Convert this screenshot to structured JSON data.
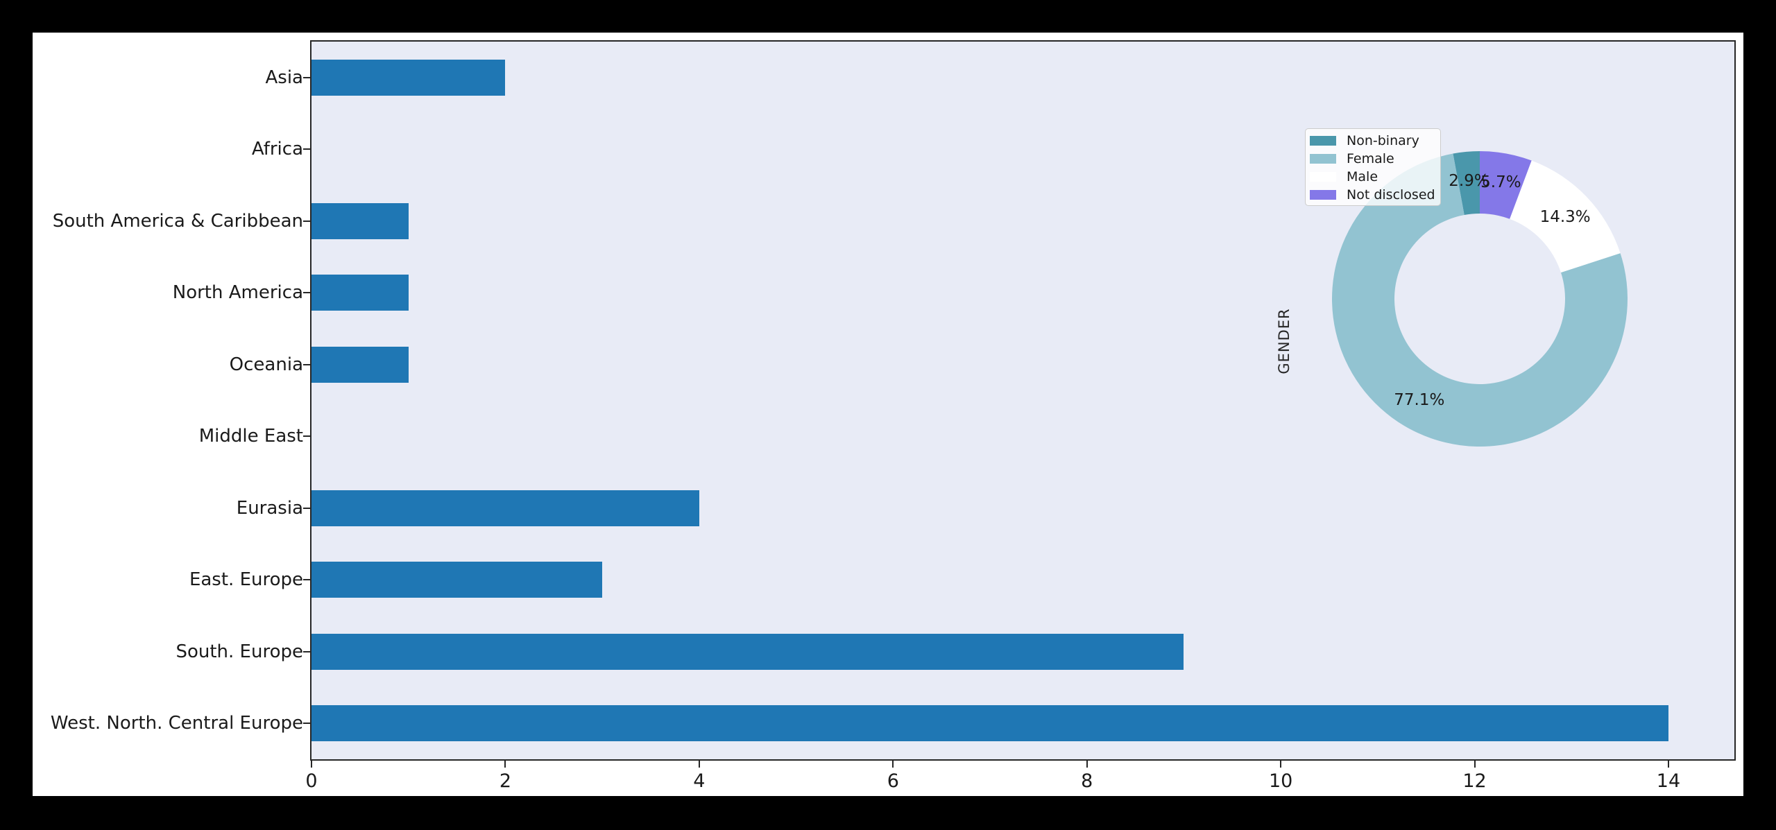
{
  "colors": {
    "canvas_border": "#000000",
    "figure_bg": "#ffffff",
    "plot_bg": "#e8ebf6",
    "bar": "#1f77b4",
    "spine": "#262626",
    "text": "#1a1a1a",
    "legend_bg": "rgba(255,255,255,0.8)",
    "legend_border": "#cccccc"
  },
  "chart_data": [
    {
      "type": "bar",
      "orientation": "horizontal",
      "title": "",
      "xlabel": "",
      "ylabel": "",
      "categories": [
        "Asia",
        "Africa",
        "South America & Caribbean",
        "North America",
        "Oceania",
        "Middle East",
        "Eurasia",
        "East. Europe",
        "South. Europe",
        "West. North. Central Europe"
      ],
      "values": [
        2,
        0,
        1,
        1,
        1,
        0,
        4,
        3,
        9,
        14
      ],
      "bar_color": "#1f77b4",
      "xlim": [
        0,
        14.68
      ],
      "x_ticks": [
        0,
        2,
        4,
        6,
        8,
        10,
        12,
        14
      ],
      "grid": false,
      "legend_position": "none"
    },
    {
      "type": "pie",
      "donut": true,
      "axis_label": "GENDER",
      "start_angle": 90,
      "direction": "counterclockwise",
      "slices": [
        {
          "label": "Non-binary",
          "value": 2.9,
          "pct_label": "2.9%",
          "color": "#4a97ab"
        },
        {
          "label": "Female",
          "value": 77.1,
          "pct_label": "77.1%",
          "color": "#92c3d1"
        },
        {
          "label": "Male",
          "value": 14.3,
          "pct_label": "14.3%",
          "color": "#ffffff"
        },
        {
          "label": "Not disclosed",
          "value": 5.7,
          "pct_label": "5.7%",
          "color": "#8478e8"
        }
      ],
      "legend_position": "upper left",
      "legend_labels": [
        "Non-binary",
        "Female",
        "Male",
        "Not disclosed"
      ]
    }
  ]
}
